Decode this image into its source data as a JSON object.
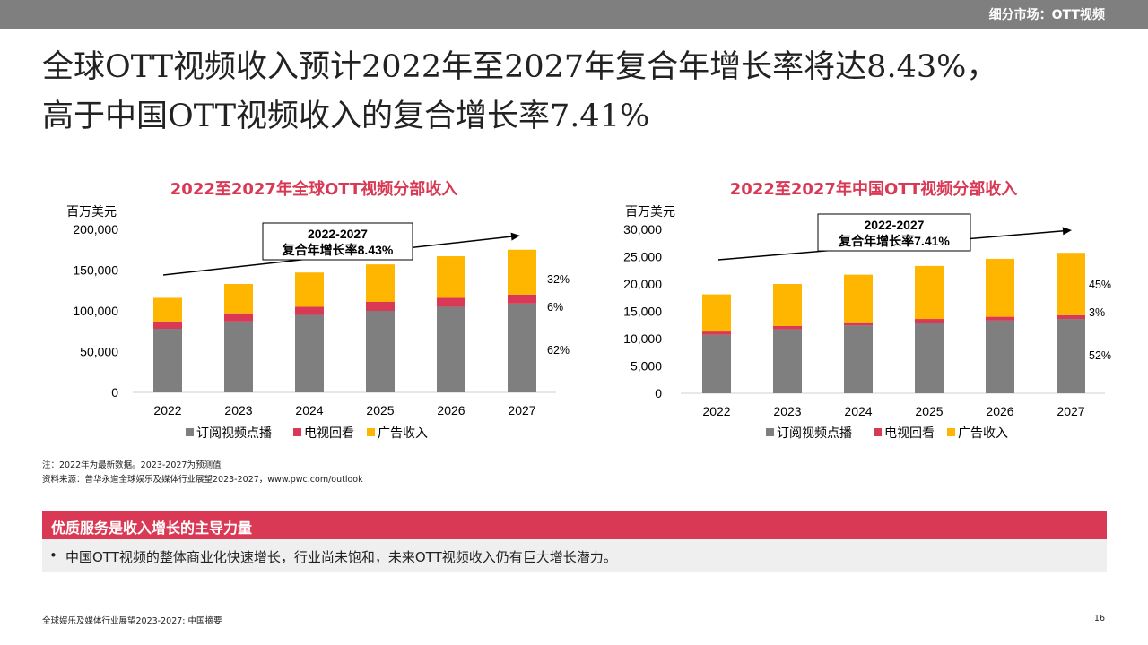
{
  "header": {
    "section_label": "细分市场：OTT视频"
  },
  "headline": {
    "line1": "全球OTT视频收入预计2022年至2027年复合年增长率将达8.43%，",
    "line2": "高于中国OTT视频收入的复合增长率7.41%"
  },
  "colors": {
    "subscription": "#7f7f7f",
    "tv_replay": "#d93954",
    "advertising": "#ffb600",
    "accent": "#d93954"
  },
  "chart_data": [
    {
      "type": "bar",
      "stacked": true,
      "title": "2022至2027年全球OTT视频分部收入",
      "ylabel": "百万美元",
      "ylim": [
        0,
        200000
      ],
      "yticks": [
        0,
        50000,
        100000,
        150000,
        200000
      ],
      "ytick_labels": [
        "0",
        "50,000",
        "100,000",
        "150,000",
        "200,000"
      ],
      "categories": [
        "2022",
        "2023",
        "2024",
        "2025",
        "2026",
        "2027"
      ],
      "series": [
        {
          "name": "订阅视频点播",
          "values": [
            78000,
            87000,
            95000,
            100000,
            105000,
            109000
          ]
        },
        {
          "name": "电视回看",
          "values": [
            9000,
            10000,
            10000,
            11000,
            11000,
            11000
          ]
        },
        {
          "name": "广告收入",
          "values": [
            29000,
            36000,
            42000,
            46000,
            51000,
            55000
          ]
        }
      ],
      "annotation": {
        "line1": "2022-2027",
        "line2": "复合年增长率8.43%"
      },
      "share_labels": [
        "32%",
        "6%",
        "62%"
      ],
      "legend": "bottom"
    },
    {
      "type": "bar",
      "stacked": true,
      "title": "2022至2027年中国OTT视频分部收入",
      "ylabel": "百万美元",
      "ylim": [
        0,
        30000
      ],
      "yticks": [
        0,
        5000,
        10000,
        15000,
        20000,
        25000,
        30000
      ],
      "ytick_labels": [
        "0",
        "5,000",
        "10,000",
        "15,000",
        "20,000",
        "25,000",
        "30,000"
      ],
      "categories": [
        "2022",
        "2023",
        "2024",
        "2025",
        "2026",
        "2027"
      ],
      "series": [
        {
          "name": "订阅视频点播",
          "values": [
            10700,
            11700,
            12400,
            12900,
            13300,
            13600
          ]
        },
        {
          "name": "电视回看",
          "values": [
            600,
            600,
            600,
            700,
            700,
            700
          ]
        },
        {
          "name": "广告收入",
          "values": [
            6800,
            7700,
            8700,
            9700,
            10600,
            11400
          ]
        }
      ],
      "annotation": {
        "line1": "2022-2027",
        "line2": "复合年增长率7.41%"
      },
      "share_labels": [
        "45%",
        "3%",
        "52%"
      ],
      "legend": "bottom"
    }
  ],
  "notes": {
    "line1": "注：2022年为最新数据。2023-2027为预测值",
    "line2": "资料来源：普华永道全球娱乐及媒体行业展望2023-2027，www.pwc.com/outlook"
  },
  "callout": {
    "title": "优质服务是收入增长的主导力量",
    "bullet": "•",
    "text": "中国OTT视频的整体商业化快速增长，行业尚未饱和，未来OTT视频收入仍有巨大增长潜力。"
  },
  "footer": {
    "left": "全球娱乐及媒体行业展望2023-2027: 中国摘要",
    "page": "16"
  }
}
